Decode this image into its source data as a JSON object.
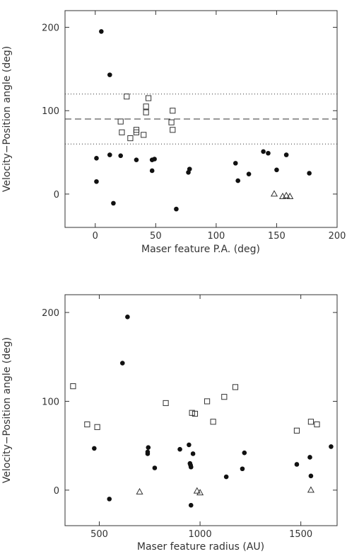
{
  "chart_data": [
    {
      "type": "scatter",
      "xlabel": "Maser feature P.A. (deg)",
      "ylabel": "Velocity−Position angle (deg)",
      "xlim": [
        -25,
        200
      ],
      "ylim": [
        -40,
        220
      ],
      "xticks": [
        0,
        50,
        100,
        150,
        200
      ],
      "yticks": [
        0,
        100,
        200
      ],
      "reference_lines": [
        {
          "y": 120,
          "style": "dotted"
        },
        {
          "y": 90,
          "style": "dashed"
        },
        {
          "y": 60,
          "style": "dotted"
        }
      ],
      "series": [
        {
          "marker": "filled-circle",
          "points": [
            [
              5,
              195
            ],
            [
              12,
              143
            ],
            [
              1,
              43
            ],
            [
              12,
              47
            ],
            [
              21,
              46
            ],
            [
              1,
              15
            ],
            [
              34,
              41
            ],
            [
              47,
              41
            ],
            [
              49,
              42
            ],
            [
              47,
              28
            ],
            [
              15,
              -11
            ],
            [
              67,
              -18
            ],
            [
              77,
              26
            ],
            [
              78,
              30
            ],
            [
              116,
              37
            ],
            [
              118,
              16
            ],
            [
              127,
              24
            ],
            [
              139,
              51
            ],
            [
              143,
              49
            ],
            [
              150,
              29
            ],
            [
              158,
              47
            ],
            [
              177,
              25
            ]
          ]
        },
        {
          "marker": "open-square",
          "points": [
            [
              26,
              117
            ],
            [
              44,
              115
            ],
            [
              21,
              87
            ],
            [
              42,
              105
            ],
            [
              42,
              98
            ],
            [
              64,
              100
            ],
            [
              63,
              86
            ],
            [
              22,
              74
            ],
            [
              29,
              67
            ],
            [
              34,
              74
            ],
            [
              34,
              77
            ],
            [
              40,
              71
            ],
            [
              64,
              77
            ]
          ]
        },
        {
          "marker": "open-triangle",
          "points": [
            [
              148,
              0
            ],
            [
              155,
              -3
            ],
            [
              158,
              -2
            ],
            [
              161,
              -3
            ]
          ]
        }
      ]
    },
    {
      "type": "scatter",
      "xlabel": "Maser feature radius (AU)",
      "ylabel": "Velocity−Position angle (deg)",
      "xlim": [
        330,
        1680
      ],
      "ylim": [
        -40,
        220
      ],
      "xticks": [
        500,
        1000,
        1500
      ],
      "yticks": [
        0,
        100,
        200
      ],
      "series": [
        {
          "marker": "filled-circle",
          "points": [
            [
              640,
              195
            ],
            [
              615,
              143
            ],
            [
              475,
              47
            ],
            [
              550,
              -10
            ],
            [
              740,
              41
            ],
            [
              740,
              43
            ],
            [
              743,
              48
            ],
            [
              775,
              25
            ],
            [
              900,
              46
            ],
            [
              945,
              51
            ],
            [
              950,
              30
            ],
            [
              953,
              28
            ],
            [
              955,
              26
            ],
            [
              965,
              41
            ],
            [
              955,
              -17
            ],
            [
              1130,
              15
            ],
            [
              1210,
              24
            ],
            [
              1220,
              42
            ],
            [
              1480,
              29
            ],
            [
              1545,
              37
            ],
            [
              1550,
              16
            ],
            [
              1650,
              49
            ]
          ]
        },
        {
          "marker": "open-square",
          "points": [
            [
              370,
              117
            ],
            [
              440,
              74
            ],
            [
              490,
              71
            ],
            [
              830,
              98
            ],
            [
              960,
              87
            ],
            [
              975,
              86
            ],
            [
              1035,
              100
            ],
            [
              1065,
              77
            ],
            [
              1120,
              105
            ],
            [
              1175,
              116
            ],
            [
              1480,
              67
            ],
            [
              1550,
              77
            ],
            [
              1580,
              74
            ]
          ]
        },
        {
          "marker": "open-triangle",
          "points": [
            [
              700,
              -2
            ],
            [
              985,
              -1
            ],
            [
              1000,
              -3
            ],
            [
              1550,
              0
            ]
          ]
        }
      ]
    }
  ]
}
